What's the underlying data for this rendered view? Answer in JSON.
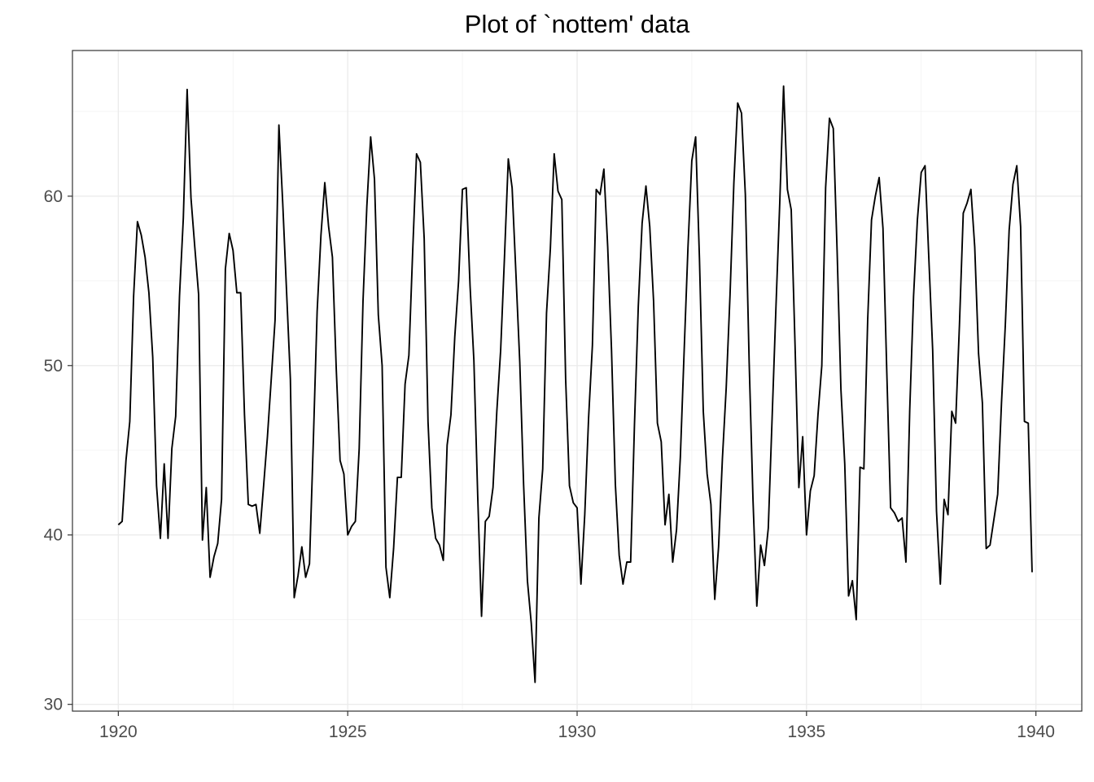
{
  "chart_data": {
    "type": "line",
    "title": "Plot of `nottem' data",
    "xlabel": "",
    "ylabel": "",
    "xlim": [
      1919.0,
      1941.0
    ],
    "ylim": [
      29.6,
      68.6
    ],
    "x_ticks": [
      1920,
      1925,
      1930,
      1935,
      1940
    ],
    "x_tick_labels": [
      "1920",
      "1925",
      "1930",
      "1935",
      "1940"
    ],
    "y_ticks": [
      30,
      40,
      50,
      60
    ],
    "y_tick_labels": [
      "30",
      "40",
      "50",
      "60"
    ],
    "grid": true,
    "legend": "none",
    "colors": {
      "line": "#000000",
      "grid": "#ebebeb",
      "border": "#333333",
      "tick_text": "#4d4d4d"
    },
    "x_start": 1920,
    "frequency": 12,
    "series": [
      {
        "values": [
          40.6,
          40.8,
          44.4,
          46.7,
          54.1,
          58.5,
          57.7,
          56.4,
          54.3,
          50.5,
          42.9,
          39.8,
          44.2,
          39.8,
          45.1,
          47.0,
          54.1,
          58.7,
          66.3,
          59.9,
          57.0,
          54.2,
          39.7,
          42.8,
          37.5,
          38.7,
          39.5,
          42.1,
          55.7,
          57.8,
          56.8,
          54.3,
          54.3,
          47.1,
          41.8,
          41.7,
          41.8,
          40.1,
          42.9,
          45.8,
          49.2,
          52.7,
          64.2,
          59.6,
          54.4,
          49.2,
          36.3,
          37.6,
          39.3,
          37.5,
          38.3,
          45.5,
          53.2,
          57.7,
          60.8,
          58.2,
          56.4,
          49.8,
          44.4,
          43.6,
          40.0,
          40.5,
          40.8,
          45.1,
          53.8,
          59.4,
          63.5,
          61.0,
          53.0,
          50.0,
          38.1,
          36.3,
          39.2,
          43.4,
          43.4,
          48.9,
          50.6,
          56.8,
          62.5,
          62.0,
          57.5,
          46.7,
          41.6,
          39.8,
          39.4,
          38.5,
          45.3,
          47.1,
          51.7,
          55.0,
          60.4,
          60.5,
          54.7,
          50.3,
          42.3,
          35.2,
          40.8,
          41.1,
          42.8,
          47.3,
          50.9,
          56.4,
          62.2,
          60.5,
          55.4,
          50.2,
          43.0,
          37.3,
          34.8,
          31.3,
          41.0,
          43.9,
          53.1,
          56.9,
          62.5,
          60.3,
          59.8,
          49.2,
          42.9,
          41.9,
          41.6,
          37.1,
          41.2,
          46.9,
          51.2,
          60.4,
          60.1,
          61.6,
          57.0,
          50.9,
          43.0,
          38.8,
          37.1,
          38.4,
          38.4,
          46.5,
          53.5,
          58.4,
          60.6,
          58.2,
          53.8,
          46.6,
          45.5,
          40.6,
          42.4,
          38.4,
          40.3,
          44.6,
          50.9,
          57.0,
          62.1,
          63.5,
          56.3,
          47.3,
          43.6,
          41.8,
          36.2,
          39.3,
          44.5,
          48.7,
          54.2,
          60.8,
          65.5,
          64.9,
          60.1,
          50.2,
          42.1,
          35.8,
          39.4,
          38.2,
          40.4,
          46.9,
          53.4,
          59.6,
          66.5,
          60.4,
          59.2,
          51.2,
          42.8,
          45.8,
          40.0,
          42.6,
          43.5,
          47.1,
          50.0,
          60.5,
          64.6,
          64.0,
          56.8,
          48.6,
          44.2,
          36.4,
          37.3,
          35.0,
          44.0,
          43.9,
          52.7,
          58.6,
          60.0,
          61.1,
          58.1,
          49.6,
          41.6,
          41.3,
          40.8,
          41.0,
          38.4,
          47.4,
          54.1,
          58.6,
          61.4,
          61.8,
          56.3,
          50.9,
          41.4,
          37.1,
          42.1,
          41.2,
          47.3,
          46.6,
          52.4,
          59.0,
          59.6,
          60.4,
          57.0,
          50.7,
          47.8,
          39.2,
          39.4,
          40.9,
          42.4,
          47.8,
          52.4,
          58.0,
          60.7,
          61.8,
          58.2,
          46.7,
          46.6,
          37.8
        ]
      }
    ]
  }
}
